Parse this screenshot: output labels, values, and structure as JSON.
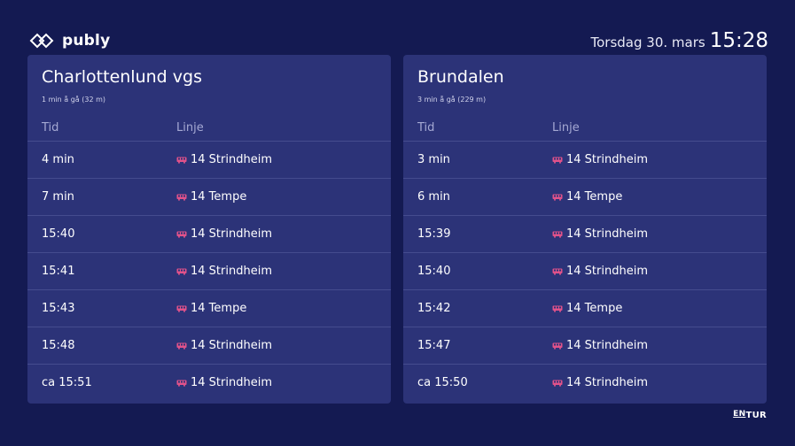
{
  "header": {
    "brand": "publy",
    "date": "Torsdag 30. mars",
    "time": "15:28"
  },
  "colors": {
    "background": "#141a52",
    "panel": "#2c3378",
    "bus_icon": "#e0528a"
  },
  "stops": [
    {
      "name": "Charlottenlund vgs",
      "walk": "1 min å gå (32 m)",
      "col_time": "Tid",
      "col_line": "Linje",
      "departures": [
        {
          "time": "4 min",
          "line": "14 Strindheim"
        },
        {
          "time": "7 min",
          "line": "14 Tempe"
        },
        {
          "time": "15:40",
          "line": "14 Strindheim"
        },
        {
          "time": "15:41",
          "line": "14 Strindheim"
        },
        {
          "time": "15:43",
          "line": "14 Tempe"
        },
        {
          "time": "15:48",
          "line": "14 Strindheim"
        },
        {
          "time": "ca 15:51",
          "line": "14 Strindheim"
        }
      ]
    },
    {
      "name": "Brundalen",
      "walk": "3 min å gå (229 m)",
      "col_time": "Tid",
      "col_line": "Linje",
      "departures": [
        {
          "time": "3 min",
          "line": "14 Strindheim"
        },
        {
          "time": "6 min",
          "line": "14 Tempe"
        },
        {
          "time": "15:39",
          "line": "14 Strindheim"
        },
        {
          "time": "15:40",
          "line": "14 Strindheim"
        },
        {
          "time": "15:42",
          "line": "14 Tempe"
        },
        {
          "time": "15:47",
          "line": "14 Strindheim"
        },
        {
          "time": "ca 15:50",
          "line": "14 Strindheim"
        }
      ]
    }
  ],
  "footer": {
    "logo_en": "EN",
    "logo_tur": "TUR"
  }
}
